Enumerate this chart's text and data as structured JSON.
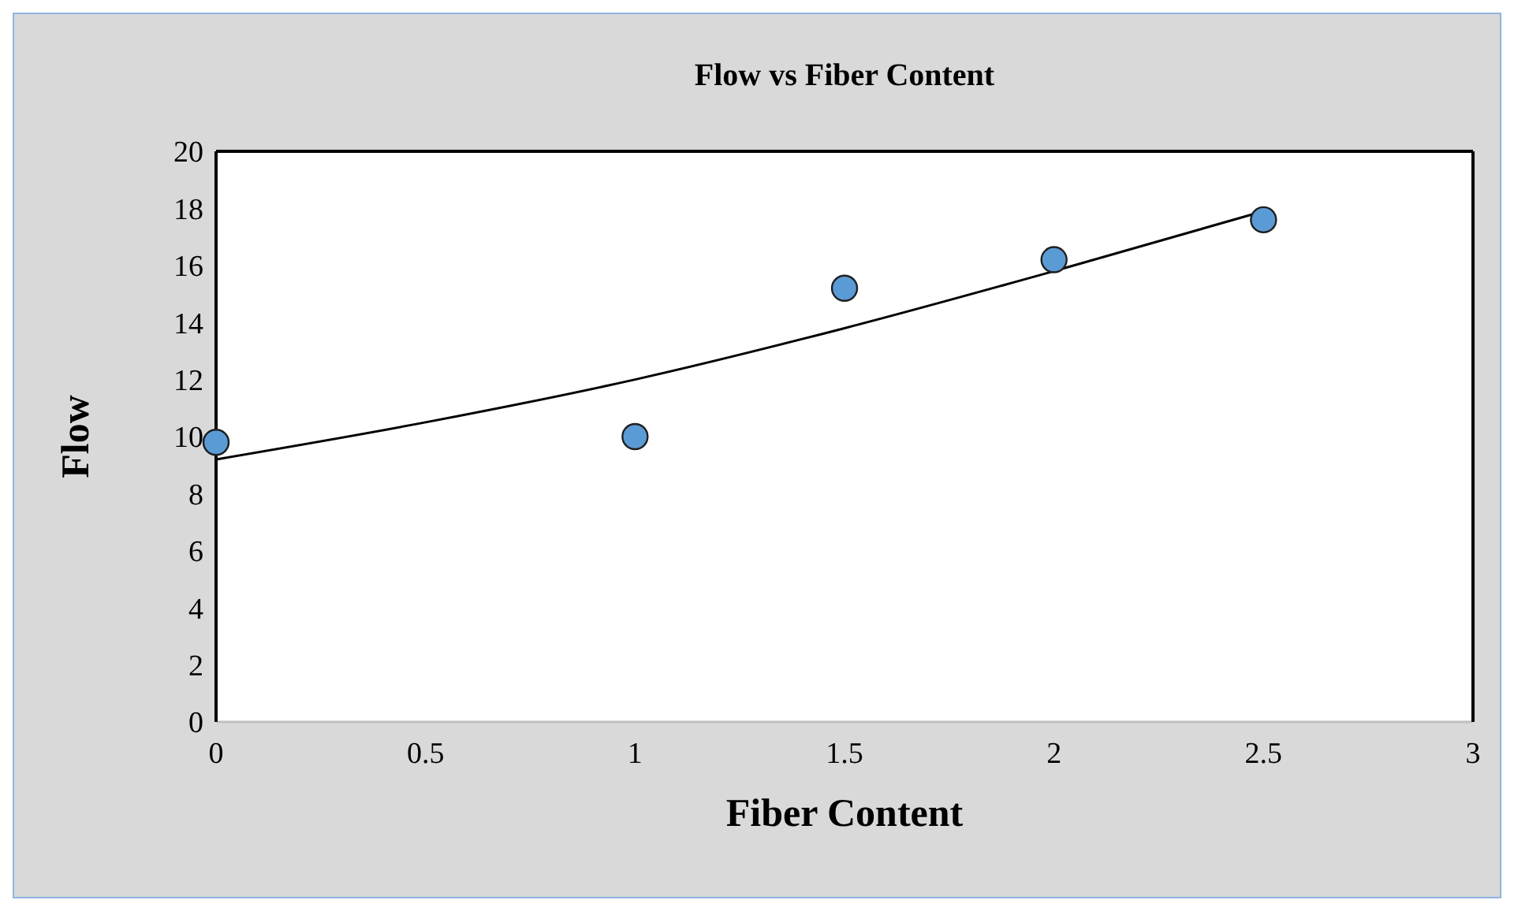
{
  "chart_data": {
    "type": "scatter",
    "title": "Flow vs Fiber Content",
    "xlabel": "Fiber Content",
    "ylabel": "Flow",
    "xlim": [
      0,
      3
    ],
    "xticks": [
      0,
      0.5,
      1,
      1.5,
      2,
      2.5,
      3
    ],
    "ylim": [
      0,
      20
    ],
    "yticks": [
      0,
      2,
      4,
      6,
      8,
      10,
      12,
      14,
      16,
      18,
      20
    ],
    "grid": false,
    "series": [
      {
        "color": "#5b9bd5",
        "marker": "circle",
        "x": [
          0,
          1,
          1.5,
          2,
          2.5
        ],
        "values": [
          9.8,
          10.0,
          15.2,
          16.2,
          17.6
        ]
      },
      {
        "type": "line",
        "color": "#000000",
        "line_style": "solid",
        "x": [
          0,
          0.5,
          1,
          1.5,
          2,
          2.5
        ],
        "values": [
          9.2,
          10.5,
          12.0,
          13.8,
          15.8,
          17.9
        ]
      }
    ]
  }
}
